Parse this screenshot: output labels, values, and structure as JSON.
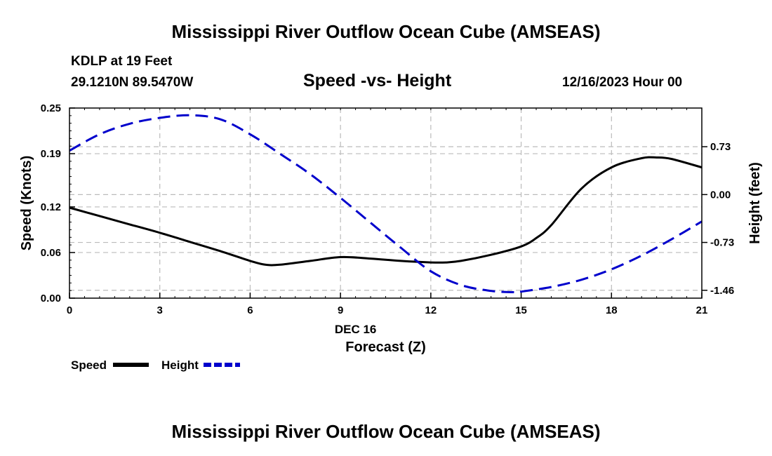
{
  "main_title": "Mississippi River Outflow Ocean Cube (AMSEAS)",
  "station_label": "KDLP at 19 Feet",
  "coordinates": "29.1210N  89.5470W",
  "subtitle": "Speed -vs- Height",
  "datetime": "12/16/2023 Hour 00",
  "bottom_title": "Mississippi River Outflow Ocean Cube (AMSEAS)",
  "legend": {
    "speed_label": "Speed",
    "height_label": "Height"
  },
  "colors": {
    "speed": "#000000",
    "height": "#0000cc",
    "grid": "#bbbbbb"
  },
  "chart_data": {
    "type": "line",
    "title": "Speed -vs- Height",
    "xlabel": "Forecast (Z)",
    "x_date_label": "DEC 16",
    "ylabel_left": "Speed (Knots)",
    "ylabel_right": "Height (feet)",
    "xlim": [
      0,
      21
    ],
    "ylim_left": [
      0,
      0.25
    ],
    "ylim_right": [
      -1.58,
      1.32
    ],
    "x_ticks": [
      "0",
      "3",
      "6",
      "9",
      "12",
      "15",
      "18",
      "21"
    ],
    "y_left_ticks": [
      "0.00",
      "0.06",
      "0.12",
      "0.19",
      "0.25"
    ],
    "y_right_ticks": [
      "-1.46",
      "-0.73",
      "0.00",
      "0.73"
    ],
    "grid": true,
    "series": [
      {
        "name": "Speed",
        "axis": "left",
        "style": "solid",
        "x": [
          0,
          1,
          2,
          3,
          4,
          5,
          6,
          6.5,
          7,
          8,
          9,
          10,
          11,
          12,
          12.5,
          13,
          14,
          15,
          15.5,
          16,
          17,
          18,
          19,
          19.5,
          20,
          21
        ],
        "values": [
          0.119,
          0.108,
          0.097,
          0.086,
          0.074,
          0.062,
          0.049,
          0.044,
          0.044,
          0.049,
          0.054,
          0.052,
          0.049,
          0.047,
          0.047,
          0.049,
          0.057,
          0.068,
          0.079,
          0.096,
          0.144,
          0.172,
          0.184,
          0.185,
          0.183,
          0.172
        ]
      },
      {
        "name": "Height",
        "axis": "right",
        "style": "dashed",
        "x": [
          0,
          1,
          2,
          3,
          4,
          5,
          6,
          7,
          8,
          9,
          10,
          11,
          12,
          13,
          14,
          14.8,
          15,
          16,
          17,
          18,
          19,
          20,
          21
        ],
        "values": [
          0.67,
          0.92,
          1.08,
          1.17,
          1.21,
          1.15,
          0.92,
          0.62,
          0.31,
          -0.05,
          -0.43,
          -0.81,
          -1.17,
          -1.38,
          -1.47,
          -1.49,
          -1.48,
          -1.41,
          -1.3,
          -1.14,
          -0.93,
          -0.68,
          -0.41
        ]
      }
    ]
  }
}
